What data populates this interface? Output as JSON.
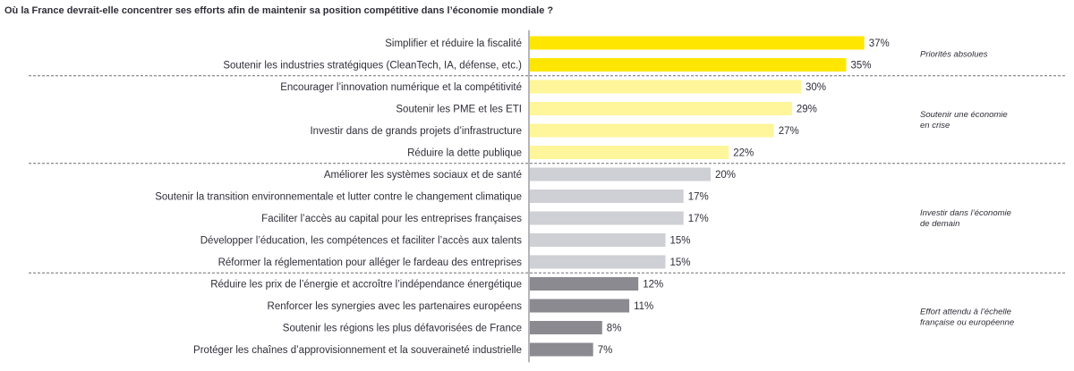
{
  "chart_data": {
    "type": "bar",
    "orientation": "horizontal",
    "title": "Où la France devrait-elle concentrer ses efforts afin de maintenir sa position compétitive dans l’économie mondiale ?",
    "value_suffix": "%",
    "xlim": [
      0,
      40
    ],
    "grid": false,
    "legend": "none",
    "categories": [
      "Simplifier et réduire la fiscalité",
      "Soutenir les industries stratégiques (CleanTech, IA, défense, etc.)",
      "Encourager l’innovation numérique et la compétitivité",
      "Soutenir les PME et les ETI",
      "Investir dans de grands projets d’infrastructure",
      "Réduire la dette publique",
      "Améliorer les systèmes sociaux et de santé",
      "Soutenir la transition environnementale et lutter contre le changement climatique",
      "Faciliter l’accès au capital pour les entreprises françaises",
      "Développer l’éducation, les compétences et faciliter l’accès aux talents",
      "Réformer la réglementation pour alléger le fardeau des entreprises",
      "Réduire les prix de l’énergie et accroître l’indépendance énergétique",
      "Renforcer les synergies avec les partenaires européens",
      "Soutenir les régions les plus défavorisées de France",
      "Protéger les chaînes d’approvisionnement et la souveraineté industrielle"
    ],
    "values": [
      37,
      35,
      30,
      29,
      27,
      22,
      20,
      17,
      17,
      15,
      15,
      12,
      11,
      8,
      7
    ],
    "groups": [
      {
        "label_lines": [
          "Priorités absolues"
        ],
        "start": 0,
        "end": 1,
        "color": "#ffe600"
      },
      {
        "label_lines": [
          "Soutenir une économie",
          "en crise"
        ],
        "start": 2,
        "end": 5,
        "color": "#fff59a"
      },
      {
        "label_lines": [
          "Investir dans l’économie",
          "de demain"
        ],
        "start": 6,
        "end": 10,
        "color": "#cfcfd6"
      },
      {
        "label_lines": [
          "Effort attendu à l’échelle",
          "française ou européenne"
        ],
        "start": 11,
        "end": 14,
        "color": "#8a8a90"
      }
    ]
  }
}
